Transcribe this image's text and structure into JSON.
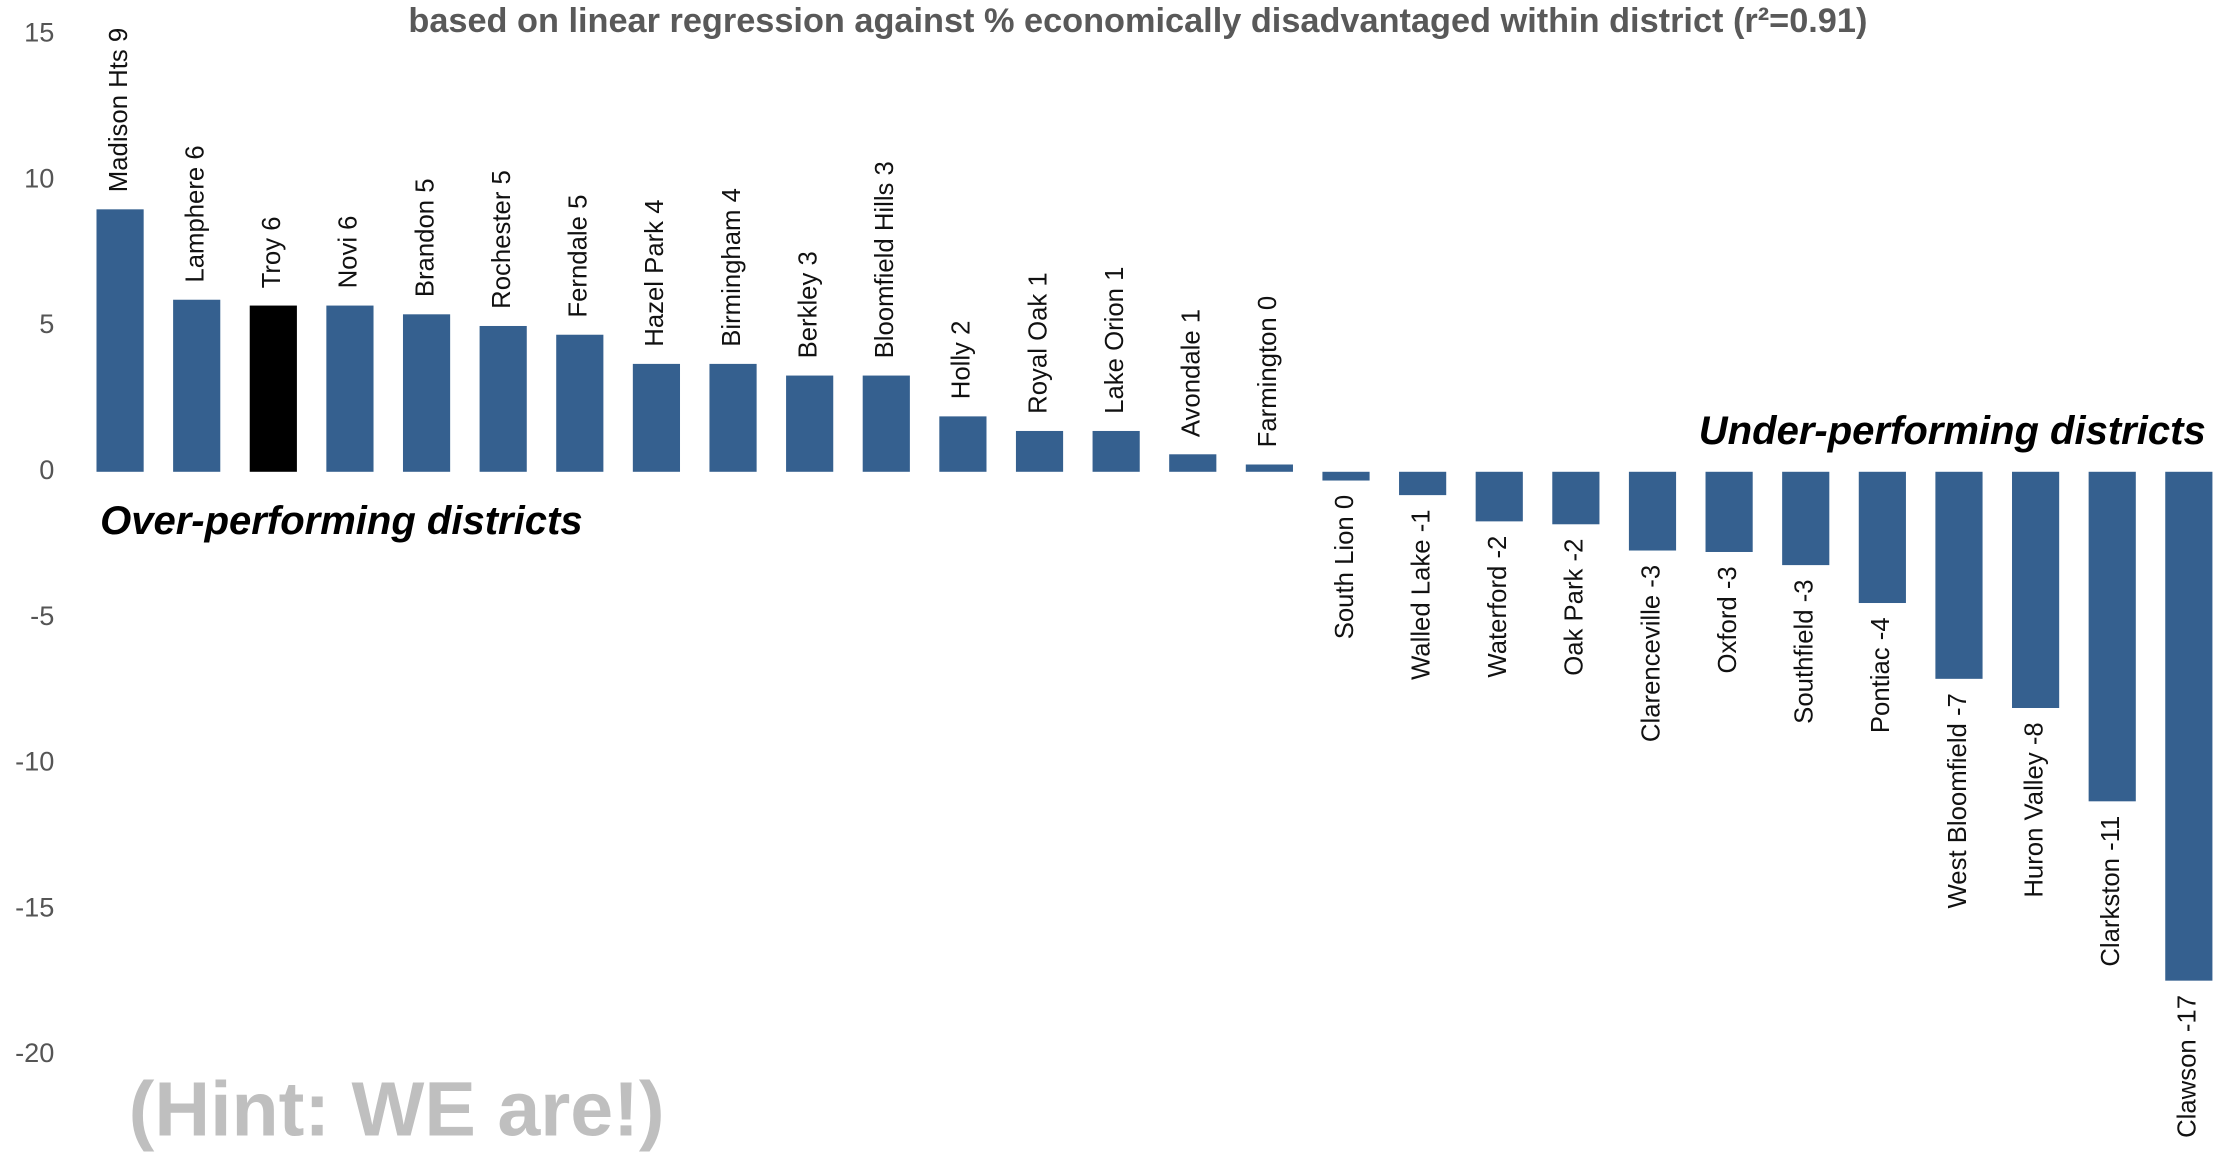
{
  "chart_data": {
    "type": "bar",
    "title": "based on linear regression against % economically disadvantaged within district (r²=0.91)",
    "annotations": [
      "Over-performing districts",
      "Under-performing districts",
      "(Hint: WE are!)"
    ],
    "categories": [
      "Madison Hts 9",
      "Lamphere 6",
      "Troy 6",
      "Novi 6",
      "Brandon 5",
      "Rochester 5",
      "Ferndale 5",
      "Hazel Park 4",
      "Birmingham 4",
      "Berkley 3",
      "Bloomfield Hills 3",
      "Holly 2",
      "Royal Oak 1",
      "Lake Orion 1",
      "Avondale 1",
      "Farmington 0",
      "South Lion 0",
      "Walled Lake -1",
      "Waterford -2",
      "Oak Park -2",
      "Clarenceville -3",
      "Oxford -3",
      "Southfield -3",
      "Pontiac -4",
      "West Bloomfield -7",
      "Huron Valley -8",
      "Clarkston -11",
      "Clawson -17"
    ],
    "values": [
      9.0,
      5.9,
      5.7,
      5.7,
      5.4,
      5.0,
      4.7,
      3.7,
      3.7,
      3.3,
      3.3,
      1.9,
      1.4,
      1.4,
      0.6,
      0.25,
      -0.3,
      -0.8,
      -1.7,
      -1.8,
      -2.7,
      -2.75,
      -3.2,
      -4.5,
      -7.1,
      -8.1,
      -11.3,
      -17.45
    ],
    "colors": [
      "#35608f",
      "#35608f",
      "#000000",
      "#35608f",
      "#35608f",
      "#35608f",
      "#35608f",
      "#35608f",
      "#35608f",
      "#35608f",
      "#35608f",
      "#35608f",
      "#35608f",
      "#35608f",
      "#35608f",
      "#35608f",
      "#35608f",
      "#35608f",
      "#35608f",
      "#35608f",
      "#35608f",
      "#35608f",
      "#35608f",
      "#35608f",
      "#35608f",
      "#35608f",
      "#35608f",
      "#35608f"
    ],
    "ylim": [
      -20,
      15
    ],
    "yticks": [
      -20,
      -15,
      -10,
      -5,
      0,
      5,
      10,
      15
    ],
    "grid": false
  }
}
